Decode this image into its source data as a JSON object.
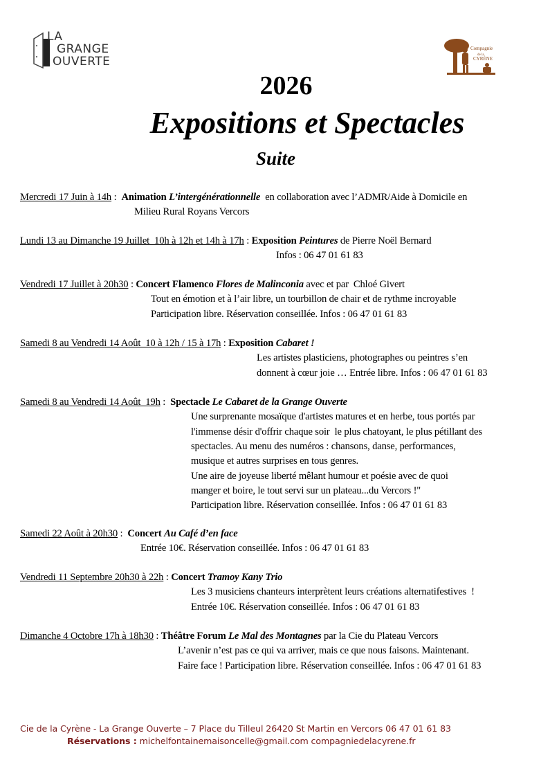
{
  "logos": {
    "left": "LA GRANGE OUVERTE",
    "right": "Compagnie de la Cyrène"
  },
  "header": {
    "year": "2026",
    "title": "Expositions et Spectacles",
    "subtitle": "Suite"
  },
  "events": [
    {
      "date": "Mercredi 17 Juin à 14h",
      "sep": " :  ",
      "kind": "Animation ",
      "title": "L’intergénérationnelle",
      "after": "  en collaboration avec l’ADMR/Aide à Domicile en",
      "lines": [
        "Milieu Rural Royans Vercors"
      ]
    },
    {
      "date": "Lundi 13 au Dimanche 19 Juillet  10h à 12h et 14h à 17h",
      "sep": " : ",
      "kind": "Exposition ",
      "title": "Peintures",
      "after": " de Pierre Noël Bernard",
      "lines": [
        "Infos : 06 47 01 61 83"
      ]
    },
    {
      "date": "Vendredi 17 Juillet à 20h30",
      "sep": " : ",
      "kind": "Concert Flamenco ",
      "title": "Flores de Malinconia",
      "after": " avec et par  Chloé Givert",
      "lines": [
        "Tout en émotion et à l’air libre, un tourbillon de chair et de rythme incroyable",
        "Participation libre. Réservation conseillée. Infos : 06 47 01 61 83"
      ]
    },
    {
      "date": "Samedi 8 au Vendredi 14 Août  10 à 12h / 15 à 17h",
      "sep": " : ",
      "kind": "Exposition ",
      "title": "Cabaret !",
      "after": "",
      "lines": [
        "Les artistes plasticiens, photographes ou peintres s’en",
        "donnent à cœur joie … Entrée libre. Infos : 06 47 01 61 83"
      ]
    },
    {
      "date": "Samedi 8 au Vendredi 14 Août  19h",
      "sep": " :  ",
      "kind": "Spectacle ",
      "title": "Le Cabaret de la Grange Ouverte",
      "after": "",
      "lines": [
        "Une surprenante mosaïque d'artistes matures et en herbe, tous portés par",
        "l'immense désir d'offrir chaque soir  le plus chatoyant, le plus pétillant des",
        "spectacles. Au menu des numéros : chansons, danse, performances,",
        "musique et autres surprises en tous genres.",
        "Une aire de joyeuse liberté mêlant humour et poésie avec de quoi",
        "manger et boire, le tout servi sur un plateau...du Vercors !\"",
        "Participation libre. Réservation conseillée. Infos : 06 47 01 61 83"
      ]
    },
    {
      "date": "Samedi 22 Août à 20h30",
      "sep": " :  ",
      "kind": "Concert ",
      "title": "Au Café d’en face",
      "after": "",
      "lines": [
        "Entrée 10€. Réservation conseillée. Infos : 06 47 01 61 83"
      ]
    },
    {
      "date": "Vendredi 11 Septembre 20h30 à 22h",
      "sep": " : ",
      "kind": "Concert ",
      "title": "Tramoy Kany Trio",
      "after": "",
      "lines": [
        "Les 3 musiciens chanteurs interprètent leurs créations alternatifestives  !",
        "Entrée 10€. Réservation conseillée. Infos : 06 47 01 61 83"
      ]
    },
    {
      "date": "Dimanche 4 Octobre 17h à 18h30",
      "sep": " : ",
      "kind": "Théâtre Forum ",
      "title": "Le Mal des Montagnes",
      "after": " par la Cie du Plateau Vercors",
      "lines": [
        "L’avenir n’est pas ce qui va arriver, mais ce que nous faisons. Maintenant.",
        "Faire face ! Participation libre. Réservation conseillée. Infos : 06 47 01 61 83"
      ]
    }
  ],
  "footer": {
    "address": "Cie de la Cyrène - La Grange Ouverte – 7 Place du Tilleul 26420 St Martin en Vercors  06 47 01 61 83",
    "reservations_label": "Réservations :",
    "email": " michelfontainemaisoncelle@gmail.com",
    "website": "  compagniedelacyrene.fr"
  },
  "colors": {
    "footer": "#7a1b1b",
    "logo_right": "#8b4a1c"
  }
}
